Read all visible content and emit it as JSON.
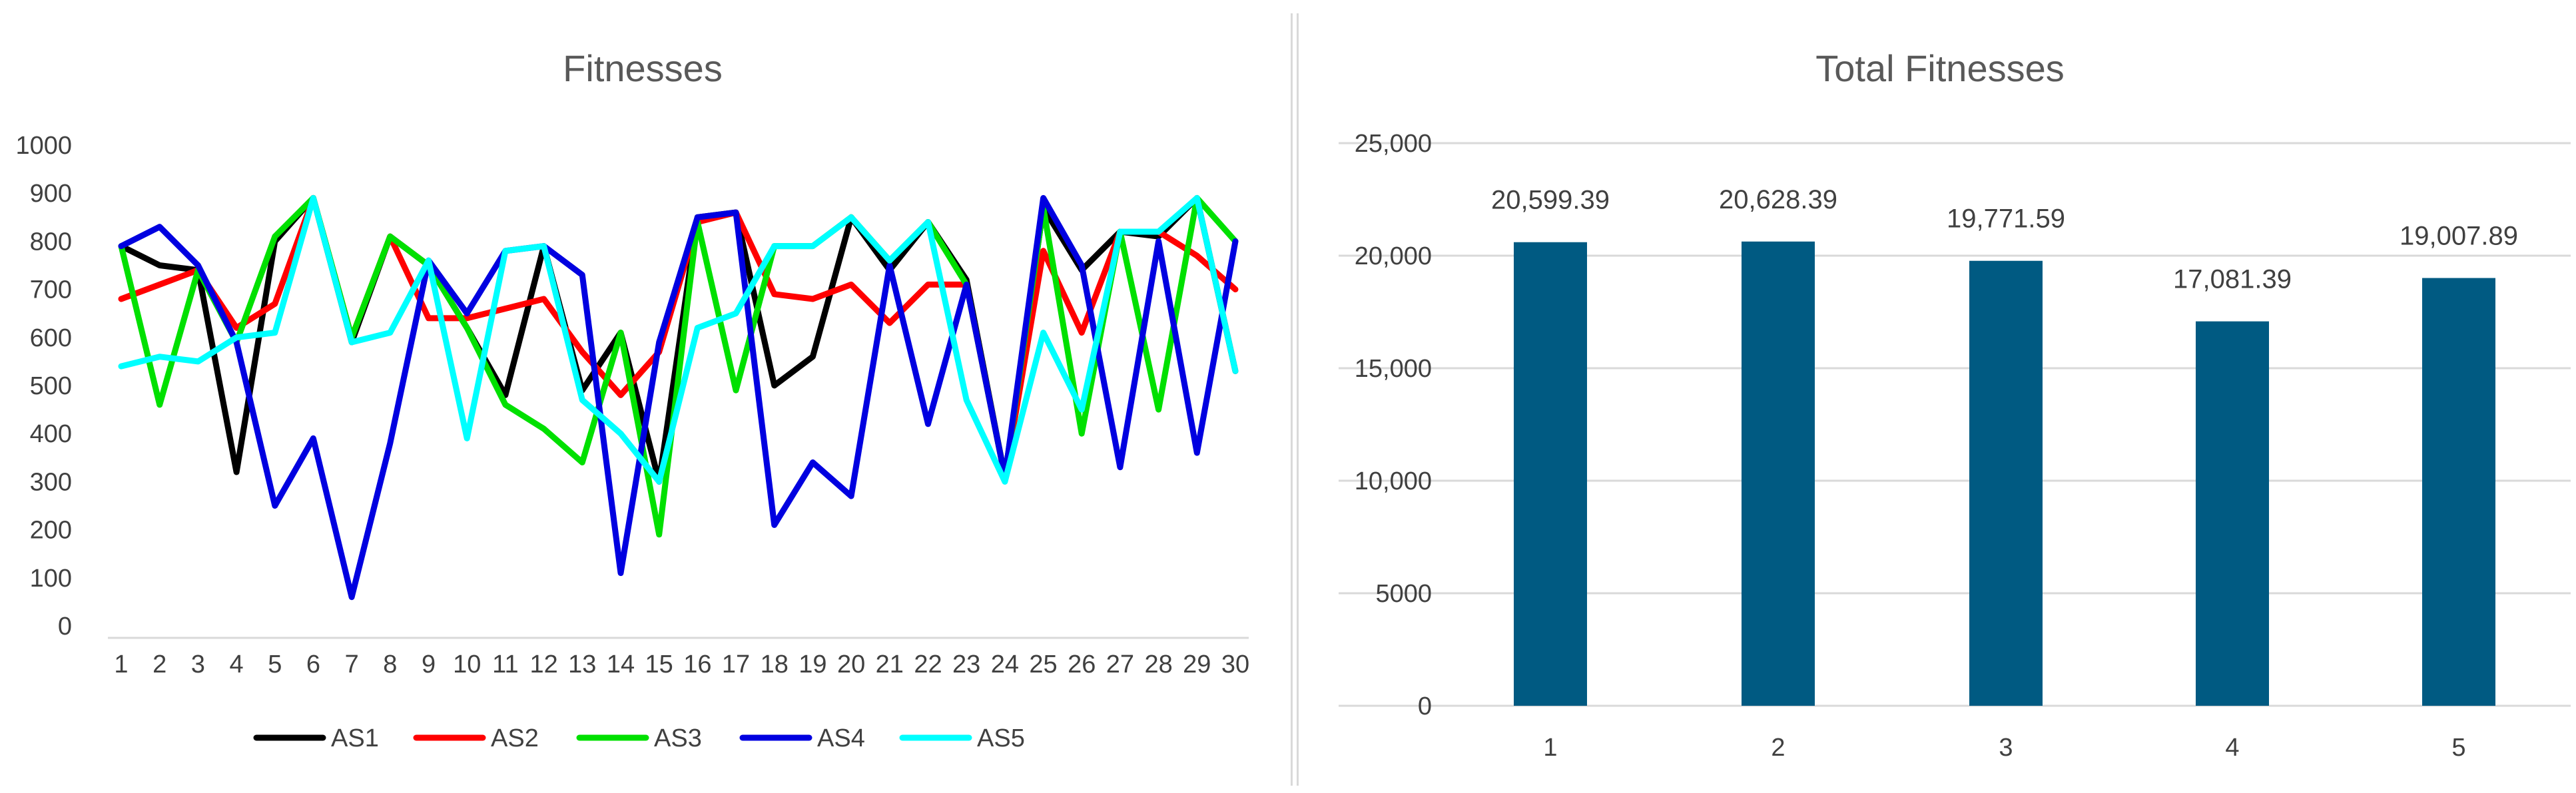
{
  "chart_data": [
    {
      "type": "line",
      "title": "Fitnesses",
      "x": [
        1,
        2,
        3,
        4,
        5,
        6,
        7,
        8,
        9,
        10,
        11,
        12,
        13,
        14,
        15,
        16,
        17,
        18,
        19,
        20,
        21,
        22,
        23,
        24,
        25,
        26,
        27,
        28,
        29,
        30
      ],
      "ylim": [
        0,
        1000
      ],
      "yticks": [
        0,
        100,
        200,
        300,
        400,
        500,
        600,
        700,
        800,
        900,
        1000
      ],
      "grid": false,
      "legend": "bottom",
      "series": [
        {
          "name": "AS1",
          "color": "#000000",
          "values": [
            790,
            750,
            740,
            320,
            800,
            890,
            590,
            810,
            750,
            620,
            480,
            790,
            490,
            610,
            300,
            850,
            860,
            500,
            560,
            850,
            740,
            840,
            720,
            310,
            870,
            740,
            820,
            810,
            890,
            530
          ]
        },
        {
          "name": "AS2",
          "color": "#ff0000",
          "values": [
            680,
            710,
            740,
            620,
            670,
            890,
            600,
            810,
            640,
            640,
            660,
            680,
            570,
            480,
            570,
            840,
            860,
            690,
            680,
            710,
            630,
            710,
            710,
            310,
            780,
            610,
            820,
            820,
            770,
            700
          ]
        },
        {
          "name": "AS3",
          "color": "#00e000",
          "values": [
            790,
            460,
            740,
            590,
            810,
            890,
            600,
            810,
            750,
            620,
            460,
            410,
            340,
            610,
            190,
            840,
            490,
            790,
            790,
            850,
            760,
            840,
            710,
            310,
            870,
            400,
            820,
            450,
            890,
            800
          ]
        },
        {
          "name": "AS4",
          "color": "#0000e0",
          "values": [
            790,
            830,
            750,
            590,
            250,
            390,
            60,
            380,
            760,
            650,
            780,
            790,
            730,
            110,
            590,
            850,
            860,
            210,
            340,
            270,
            750,
            420,
            710,
            310,
            890,
            750,
            330,
            800,
            360,
            800
          ]
        },
        {
          "name": "AS5",
          "color": "#00ffff",
          "values": [
            540,
            560,
            550,
            600,
            610,
            890,
            590,
            610,
            760,
            390,
            780,
            790,
            470,
            400,
            300,
            620,
            650,
            790,
            790,
            850,
            760,
            840,
            470,
            300,
            610,
            450,
            820,
            820,
            890,
            530
          ]
        }
      ]
    },
    {
      "type": "bar",
      "title": "Total Fitnesses",
      "categories": [
        "1",
        "2",
        "3",
        "4",
        "5"
      ],
      "values": [
        20599.39,
        20628.39,
        19771.59,
        17081.39,
        19007.89
      ],
      "data_labels": [
        "20,599.39",
        "20,628.39",
        "19,771.59",
        "17,081.39",
        "19,007.89"
      ],
      "ylim": [
        0,
        25000
      ],
      "ytick_labels": [
        "0",
        "5000",
        "10,000",
        "15,000",
        "20,000",
        "25,000"
      ],
      "yticks": [
        0,
        5000,
        10000,
        15000,
        20000,
        25000
      ],
      "grid": true,
      "color": "#005a82"
    }
  ]
}
